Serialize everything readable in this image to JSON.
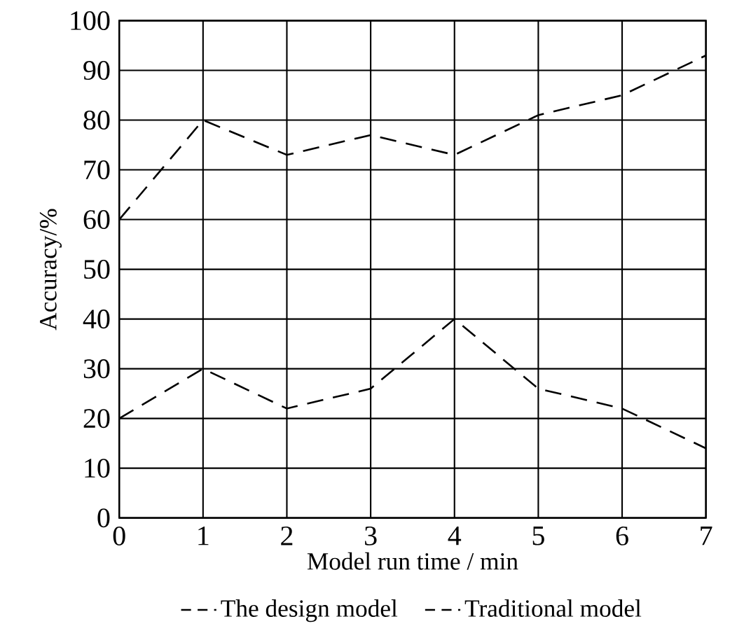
{
  "chart_data": {
    "type": "line",
    "xlabel": "Model run time / min",
    "ylabel": "Accuracy/%",
    "x": [
      0,
      1,
      2,
      3,
      4,
      5,
      6,
      7
    ],
    "series": [
      {
        "name": "The design model",
        "color": "#000000",
        "values": [
          60,
          80,
          73,
          77,
          73,
          81,
          85,
          93
        ]
      },
      {
        "name": "Traditional model",
        "color": "#000000",
        "values": [
          20,
          30,
          22,
          26,
          40,
          26,
          22,
          14
        ]
      }
    ],
    "xlim": [
      0,
      7
    ],
    "ylim": [
      0,
      100
    ],
    "xticks": [
      0,
      1,
      2,
      3,
      4,
      5,
      6,
      7
    ],
    "yticks": [
      0,
      10,
      20,
      30,
      40,
      50,
      60,
      70,
      80,
      90,
      100
    ],
    "grid": true,
    "legend": "bottom",
    "line_style": "dashed",
    "marker": "none"
  }
}
